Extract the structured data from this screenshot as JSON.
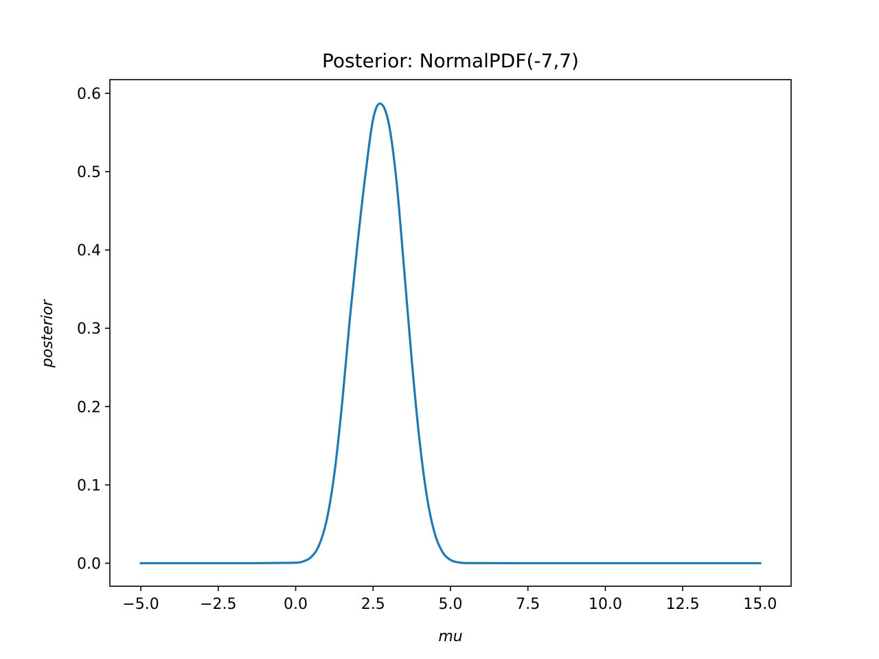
{
  "chart_data": {
    "type": "line",
    "title": "Posterior: NormalPDF(-7,7)",
    "xlabel": "mu",
    "ylabel": "posterior",
    "xlim": [
      -6.0,
      16.0
    ],
    "ylim": [
      -0.0294,
      0.6175
    ],
    "grid": false,
    "legend": "none",
    "xticks": [
      -5.0,
      -2.5,
      0.0,
      2.5,
      5.0,
      7.5,
      10.0,
      12.5,
      15.0
    ],
    "xtick_labels": [
      "−5.0",
      "−2.5",
      "0.0",
      "2.5",
      "5.0",
      "7.5",
      "10.0",
      "12.5",
      "15.0"
    ],
    "yticks": [
      0.0,
      0.1,
      0.2,
      0.3,
      0.4,
      0.5,
      0.6
    ],
    "ytick_labels": [
      "0.0",
      "0.1",
      "0.2",
      "0.3",
      "0.4",
      "0.5",
      "0.6"
    ],
    "series": [
      {
        "color": "#1f77b4",
        "x": [
          -5.0,
          -2.5,
          0.0,
          0.25,
          0.5,
          0.75,
          1.0,
          1.25,
          1.5,
          1.75,
          2.0,
          2.25,
          2.5,
          2.72,
          3.0,
          3.25,
          3.5,
          3.75,
          4.0,
          4.25,
          4.5,
          4.75,
          5.0,
          5.25,
          5.5,
          7.5,
          10.0,
          12.5,
          15.0
        ],
        "y": [
          0.0,
          0.0,
          0.0006,
          0.0024,
          0.0079,
          0.0225,
          0.0548,
          0.1143,
          0.2041,
          0.3122,
          0.4089,
          0.4952,
          0.5669,
          0.587,
          0.5628,
          0.4903,
          0.3769,
          0.2586,
          0.1568,
          0.0824,
          0.0369,
          0.0138,
          0.0042,
          0.0011,
          0.0002,
          0.0,
          0.0,
          0.0,
          0.0
        ]
      }
    ]
  }
}
